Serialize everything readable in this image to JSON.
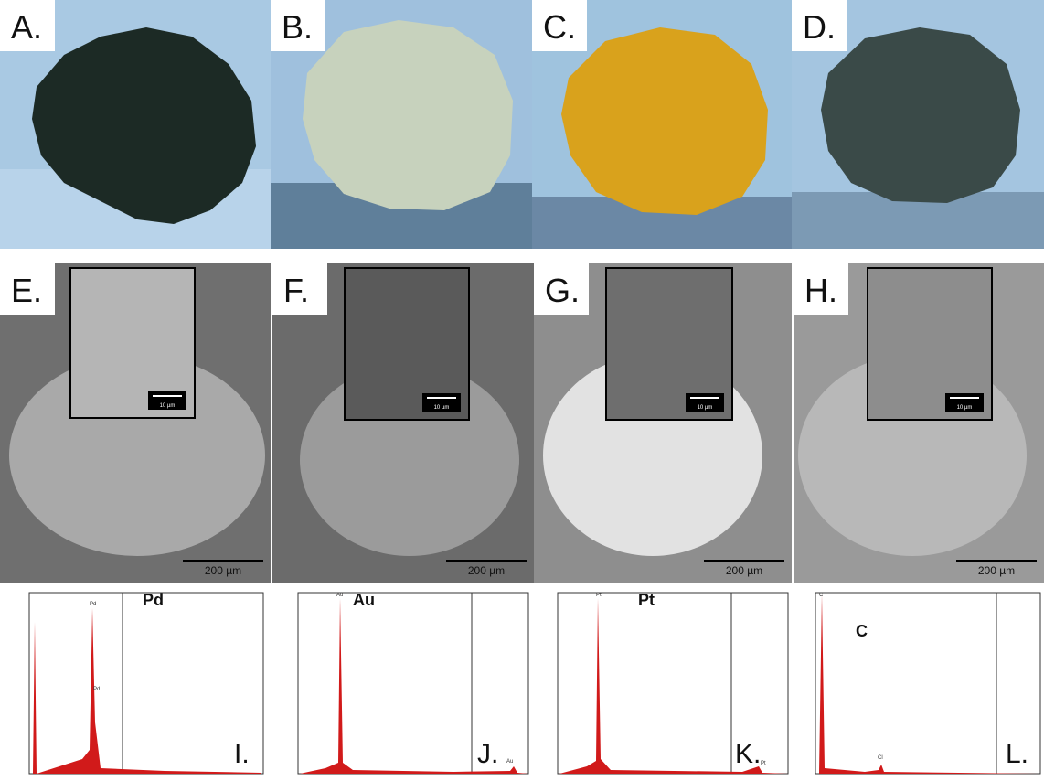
{
  "photos": [
    {
      "label": "A.",
      "color": "#1c2a25"
    },
    {
      "label": "B.",
      "color": "#c7d2bd"
    },
    {
      "label": "C.",
      "color": "#d9a21c"
    },
    {
      "label": "D.",
      "color": "#3a4a48"
    }
  ],
  "sem": [
    {
      "label": "E.",
      "scale_small": "10 µm",
      "scale_big": "200 µm"
    },
    {
      "label": "F.",
      "scale_small": "10 µm",
      "scale_big": "200 µm"
    },
    {
      "label": "G.",
      "scale_small": "10 µm",
      "scale_big": "200 µm"
    },
    {
      "label": "H.",
      "scale_small": "10 µm",
      "scale_big": "200 µm"
    }
  ],
  "eds": [
    {
      "label": "I.",
      "element": "Pd",
      "peak_label": "Pd",
      "minor_label": "Pd"
    },
    {
      "label": "J.",
      "element": "Au",
      "peak_label": "Au",
      "minor_label": "Au"
    },
    {
      "label": "K.",
      "element": "Pt",
      "peak_label": "Pt",
      "minor_label": "Pt"
    },
    {
      "label": "L.",
      "element": "C",
      "peak_label": "C",
      "minor_label": "Cl"
    }
  ],
  "colors": {
    "background_blue": "#9fc3de",
    "spectrum_red": "#d11a1a",
    "sem_gray": "#7d7d7d"
  }
}
